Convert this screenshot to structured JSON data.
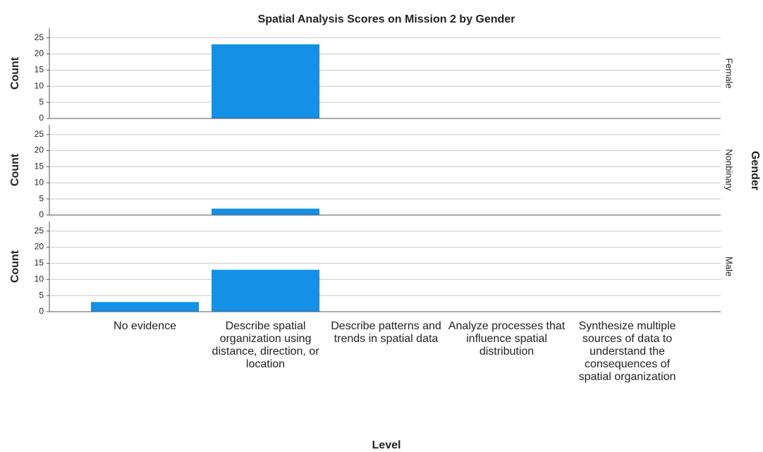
{
  "chart_data": {
    "type": "bar",
    "title": "Spatial Analysis Scores on Mission 2 by Gender",
    "x_label": "Level",
    "y_label": "Count",
    "facet_label": "Gender",
    "categories": [
      "No evidence",
      "Describe spatial organization using distance, direction, or location",
      "Describe patterns and trends in spatial data",
      "Analyze processes that influence spatial distribution",
      "Synthesize multiple sources of data to understand the consequences of spatial organization"
    ],
    "series": [
      {
        "name": "Female",
        "color": "#1490e6",
        "values": [
          0,
          23,
          0,
          0,
          0
        ]
      },
      {
        "name": "Nonbinary",
        "color": "#1490e6",
        "values": [
          0,
          2,
          0,
          0,
          0
        ]
      },
      {
        "name": "Male",
        "color": "#1490e6",
        "values": [
          3,
          13,
          0,
          0,
          0
        ]
      }
    ],
    "ylim": [
      0,
      28
    ],
    "yticks": [
      0,
      5,
      10,
      15,
      20,
      25
    ],
    "grid": true
  }
}
